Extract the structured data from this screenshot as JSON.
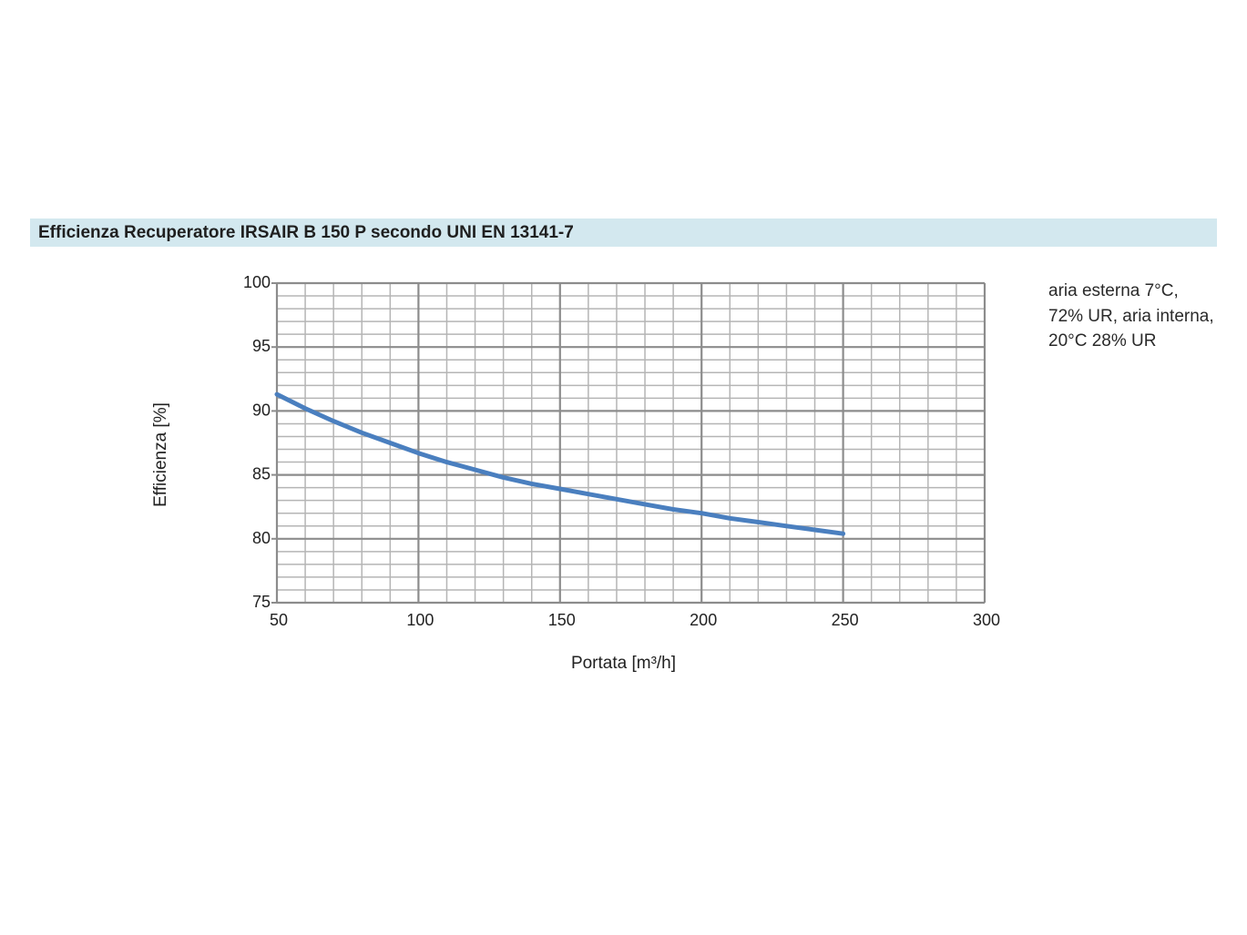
{
  "header": {
    "title": "Efficienza Recuperatore IRSAIR B 150 P secondo UNI EN 13141-7"
  },
  "note": {
    "lines": [
      "aria esterna 7°C,",
      "72% UR, aria interna,",
      "20°C 28% UR"
    ]
  },
  "chart_data": {
    "type": "line",
    "title": "Efficienza Recuperatore IRSAIR B 150 P secondo UNI EN 13141-7",
    "xlabel": "Portata [m³/h]",
    "ylabel": "Efficienza [%]",
    "xlim": [
      50,
      300
    ],
    "ylim": [
      75,
      100
    ],
    "x_ticks": [
      50,
      100,
      150,
      200,
      250,
      300
    ],
    "y_ticks": [
      75,
      80,
      85,
      90,
      95,
      100
    ],
    "x_minor_step": 10,
    "y_minor_step": 1,
    "grid": true,
    "series": [
      {
        "name": "Efficienza",
        "color": "#4a7fbf",
        "x": [
          50,
          60,
          70,
          80,
          90,
          100,
          110,
          120,
          130,
          140,
          150,
          160,
          170,
          180,
          190,
          200,
          210,
          220,
          230,
          240,
          250
        ],
        "y": [
          91.3,
          90.2,
          89.2,
          88.3,
          87.5,
          86.7,
          86.0,
          85.4,
          84.8,
          84.3,
          83.9,
          83.5,
          83.1,
          82.7,
          82.3,
          82.0,
          81.6,
          81.3,
          81.0,
          80.7,
          80.4
        ]
      }
    ],
    "colors": {
      "major_grid": "#8c8c8c",
      "minor_grid": "#b5b5b5"
    }
  }
}
